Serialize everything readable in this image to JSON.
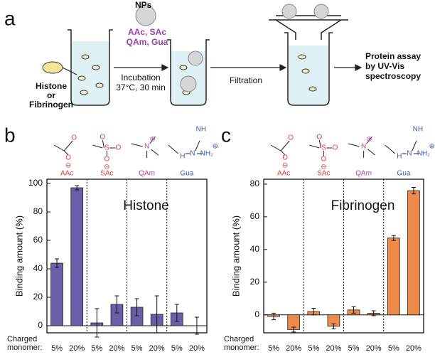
{
  "panel_label": "a",
  "schematic": {
    "nps": "NPs",
    "monomers_1": "AAc, SAc",
    "monomers_2": "QAm, Gua",
    "protein_1": "Histone",
    "protein_or": "or",
    "protein_2": "Fibrinogen",
    "step_1": "Incubation",
    "step_1_conditions": "37°C, 30 min",
    "step_2": "Filtration",
    "result_1": "Protein assay",
    "result_2": "by UV-Vis",
    "result_3": "spectroscopy"
  },
  "chart_data": [
    {
      "type": "bar",
      "panel": "b",
      "title": "Histone",
      "ylabel": "Binding amount (%)",
      "xlabel": [
        "Charged",
        "monomer:"
      ],
      "color": "#6a5ea8",
      "groups": [
        "AAc",
        "SAc",
        "QAm",
        "Gua"
      ],
      "group_colors": [
        "#e0403a",
        "#e0403a",
        "#b040a8",
        "#3a5cb0"
      ],
      "structures": [
        [
          "O",
          "O",
          "⊖"
        ],
        [
          "O",
          "S",
          "O",
          "O",
          "⊖"
        ],
        [
          "N",
          "⊕"
        ],
        [
          "NH",
          "H",
          "N",
          "NH₂",
          "⊕"
        ]
      ],
      "categories": [
        "5%",
        "20%",
        "5%",
        "20%",
        "5%",
        "20%",
        "5%",
        "20%"
      ],
      "values": [
        44,
        97,
        2,
        15,
        13,
        8,
        9,
        0
      ],
      "errors": [
        3,
        1.5,
        10,
        6,
        6,
        13,
        6,
        6
      ],
      "ylim": [
        -5,
        103
      ],
      "yticks": [
        0,
        20,
        40,
        60,
        80,
        100
      ]
    },
    {
      "type": "bar",
      "panel": "c",
      "title": "Fibrinogen",
      "ylabel": "Binding amount (%)",
      "xlabel": [
        "Charged",
        "monomer:"
      ],
      "color": "#ee8a4a",
      "groups": [
        "AAc",
        "SAc",
        "QAm",
        "Gua"
      ],
      "group_colors": [
        "#e0403a",
        "#e0403a",
        "#b040a8",
        "#3a5cb0"
      ],
      "structures": [
        [
          "O",
          "O",
          "⊖"
        ],
        [
          "O",
          "S",
          "O",
          "O",
          "⊖"
        ],
        [
          "N",
          "⊕"
        ],
        [
          "NH",
          "H",
          "N",
          "NH₂",
          "⊕"
        ]
      ],
      "categories": [
        "5%",
        "20%",
        "5%",
        "20%",
        "5%",
        "20%",
        "5%",
        "20%"
      ],
      "values": [
        -1,
        -9,
        2,
        -7,
        3,
        1,
        47,
        76
      ],
      "errors": [
        2,
        1.5,
        2,
        1.5,
        2,
        1.5,
        1.5,
        2
      ],
      "ylim": [
        -11,
        83
      ],
      "yticks": [
        0,
        20,
        40,
        60,
        80
      ]
    }
  ]
}
